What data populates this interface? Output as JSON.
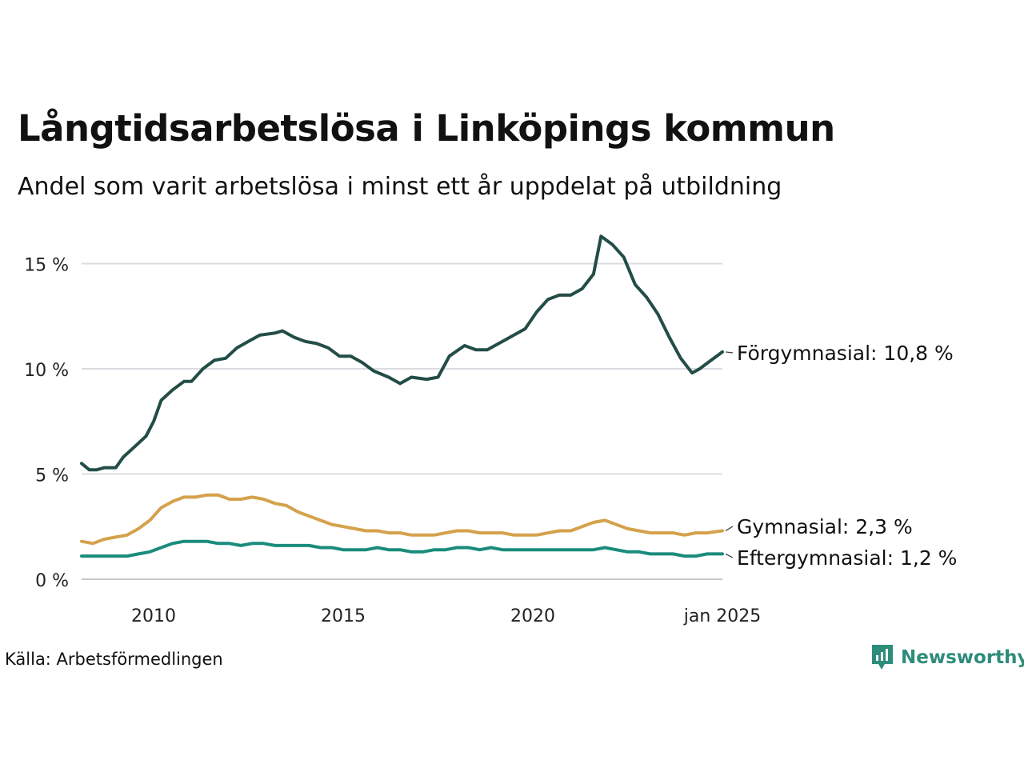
{
  "title": "Långtidsarbetslösa i Linköpings kommun",
  "subtitle": "Andel som varit arbetslösa i minst ett år uppdelat på utbildning",
  "source": "Källa: Arbetsförmedlingen",
  "brand": "Newsworthy",
  "colors": {
    "forgymnasial": "#234d47",
    "gymnasial": "#d4a24c",
    "eftergymnasial": "#1a8c7c",
    "grid": "#dcdce2",
    "brand": "#2e8c7a"
  },
  "chart_data": {
    "type": "line",
    "xlim": [
      2008.1,
      2025.0
    ],
    "ylim": [
      0,
      16.5
    ],
    "yticks": [
      0,
      5,
      10,
      15
    ],
    "ytick_labels": [
      "0 %",
      "5 %",
      "10 %",
      "15 %"
    ],
    "xticks": [
      2010,
      2015,
      2020,
      2025.0
    ],
    "xtick_labels": [
      "2010",
      "2015",
      "2020",
      "jan 2025"
    ],
    "series": [
      {
        "name": "Förgymnasial",
        "label": "Förgymnasial: 10,8 %",
        "x": [
          2008.1,
          2008.3,
          2008.5,
          2008.7,
          2009.0,
          2009.2,
          2009.5,
          2009.8,
          2010.0,
          2010.2,
          2010.5,
          2010.8,
          2011.0,
          2011.3,
          2011.6,
          2011.9,
          2012.2,
          2012.5,
          2012.8,
          2013.2,
          2013.4,
          2013.7,
          2014.0,
          2014.3,
          2014.6,
          2014.9,
          2015.2,
          2015.5,
          2015.8,
          2016.2,
          2016.5,
          2016.8,
          2017.2,
          2017.5,
          2017.8,
          2018.2,
          2018.5,
          2018.8,
          2019.2,
          2019.5,
          2019.8,
          2020.1,
          2020.4,
          2020.7,
          2021.0,
          2021.3,
          2021.6,
          2021.8,
          2022.1,
          2022.4,
          2022.7,
          2023.0,
          2023.3,
          2023.6,
          2023.9,
          2024.2,
          2024.4,
          2024.7,
          2025.0
        ],
        "values": [
          5.5,
          5.2,
          5.2,
          5.3,
          5.3,
          5.8,
          6.3,
          6.8,
          7.5,
          8.5,
          9.0,
          9.4,
          9.4,
          10.0,
          10.4,
          10.5,
          11.0,
          11.3,
          11.6,
          11.7,
          11.8,
          11.5,
          11.3,
          11.2,
          11.0,
          10.6,
          10.6,
          10.3,
          9.9,
          9.6,
          9.3,
          9.6,
          9.5,
          9.6,
          10.6,
          11.1,
          10.9,
          10.9,
          11.3,
          11.6,
          11.9,
          12.7,
          13.3,
          13.5,
          13.5,
          13.8,
          14.5,
          16.3,
          15.9,
          15.3,
          14.0,
          13.4,
          12.6,
          11.5,
          10.5,
          9.8,
          10.0,
          10.4,
          10.8
        ]
      },
      {
        "name": "Gymnasial",
        "label": "Gymnasial:  2,3 %",
        "x": [
          2008.1,
          2008.4,
          2008.7,
          2009.0,
          2009.3,
          2009.6,
          2009.9,
          2010.2,
          2010.5,
          2010.8,
          2011.1,
          2011.4,
          2011.7,
          2012.0,
          2012.3,
          2012.6,
          2012.9,
          2013.2,
          2013.5,
          2013.8,
          2014.1,
          2014.4,
          2014.7,
          2015.0,
          2015.3,
          2015.6,
          2015.9,
          2016.2,
          2016.5,
          2016.8,
          2017.1,
          2017.4,
          2017.7,
          2018.0,
          2018.3,
          2018.6,
          2018.9,
          2019.2,
          2019.5,
          2019.8,
          2020.1,
          2020.4,
          2020.7,
          2021.0,
          2021.3,
          2021.6,
          2021.9,
          2022.2,
          2022.5,
          2022.8,
          2023.1,
          2023.4,
          2023.7,
          2024.0,
          2024.3,
          2024.6,
          2025.0
        ],
        "values": [
          1.8,
          1.7,
          1.9,
          2.0,
          2.1,
          2.4,
          2.8,
          3.4,
          3.7,
          3.9,
          3.9,
          4.0,
          4.0,
          3.8,
          3.8,
          3.9,
          3.8,
          3.6,
          3.5,
          3.2,
          3.0,
          2.8,
          2.6,
          2.5,
          2.4,
          2.3,
          2.3,
          2.2,
          2.2,
          2.1,
          2.1,
          2.1,
          2.2,
          2.3,
          2.3,
          2.2,
          2.2,
          2.2,
          2.1,
          2.1,
          2.1,
          2.2,
          2.3,
          2.3,
          2.5,
          2.7,
          2.8,
          2.6,
          2.4,
          2.3,
          2.2,
          2.2,
          2.2,
          2.1,
          2.2,
          2.2,
          2.3
        ]
      },
      {
        "name": "Eftergymnasial",
        "label": "Eftergymnasial:  1,2 %",
        "x": [
          2008.1,
          2008.4,
          2008.7,
          2009.0,
          2009.3,
          2009.6,
          2009.9,
          2010.2,
          2010.5,
          2010.8,
          2011.1,
          2011.4,
          2011.7,
          2012.0,
          2012.3,
          2012.6,
          2012.9,
          2013.2,
          2013.5,
          2013.8,
          2014.1,
          2014.4,
          2014.7,
          2015.0,
          2015.3,
          2015.6,
          2015.9,
          2016.2,
          2016.5,
          2016.8,
          2017.1,
          2017.4,
          2017.7,
          2018.0,
          2018.3,
          2018.6,
          2018.9,
          2019.2,
          2019.5,
          2019.8,
          2020.1,
          2020.4,
          2020.7,
          2021.0,
          2021.3,
          2021.6,
          2021.9,
          2022.2,
          2022.5,
          2022.8,
          2023.1,
          2023.4,
          2023.7,
          2024.0,
          2024.3,
          2024.6,
          2025.0
        ],
        "values": [
          1.1,
          1.1,
          1.1,
          1.1,
          1.1,
          1.2,
          1.3,
          1.5,
          1.7,
          1.8,
          1.8,
          1.8,
          1.7,
          1.7,
          1.6,
          1.7,
          1.7,
          1.6,
          1.6,
          1.6,
          1.6,
          1.5,
          1.5,
          1.4,
          1.4,
          1.4,
          1.5,
          1.4,
          1.4,
          1.3,
          1.3,
          1.4,
          1.4,
          1.5,
          1.5,
          1.4,
          1.5,
          1.4,
          1.4,
          1.4,
          1.4,
          1.4,
          1.4,
          1.4,
          1.4,
          1.4,
          1.5,
          1.4,
          1.3,
          1.3,
          1.2,
          1.2,
          1.2,
          1.1,
          1.1,
          1.2,
          1.2
        ]
      }
    ]
  }
}
